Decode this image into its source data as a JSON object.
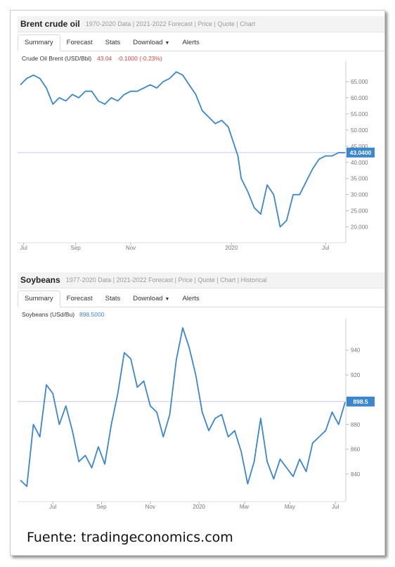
{
  "chart_data": [
    {
      "type": "line",
      "title": "Brent crude oil",
      "nav_links": [
        "1970-2020 Data",
        "2021-2022 Forecast",
        "Price",
        "Quote",
        "Chart"
      ],
      "tabs": [
        "Summary",
        "Forecast",
        "Stats",
        "Download",
        "Alerts"
      ],
      "series_label": "Crude Oil Brent (USD/Bbl)",
      "last_value": "43.04",
      "change": "-0.1000 (-0.23%)",
      "current_marker": "43.0400",
      "current_value": 43.04,
      "ylim": [
        16,
        70
      ],
      "y_ticks": [
        "65.000",
        "60.000",
        "55.000",
        "50.000",
        "45.000",
        "40.000",
        "35.000",
        "30.000",
        "25.000",
        "20.000"
      ],
      "y_tick_values": [
        65,
        60,
        55,
        50,
        45,
        40,
        35,
        30,
        25,
        20
      ],
      "x_ticks": [
        "Jul",
        "Sep",
        "Nov",
        "2020",
        "Jul"
      ],
      "x_tick_positions": [
        0.01,
        0.17,
        0.34,
        0.65,
        0.94
      ],
      "x": [
        0,
        0.02,
        0.04,
        0.06,
        0.08,
        0.1,
        0.12,
        0.14,
        0.16,
        0.18,
        0.2,
        0.22,
        0.24,
        0.26,
        0.28,
        0.3,
        0.32,
        0.34,
        0.36,
        0.38,
        0.4,
        0.42,
        0.44,
        0.46,
        0.48,
        0.5,
        0.52,
        0.54,
        0.56,
        0.58,
        0.6,
        0.62,
        0.64,
        0.66,
        0.67,
        0.68,
        0.7,
        0.72,
        0.74,
        0.76,
        0.78,
        0.8,
        0.82,
        0.84,
        0.86,
        0.88,
        0.9,
        0.92,
        0.94,
        0.96,
        0.98,
        1.0
      ],
      "values": [
        64,
        66,
        67,
        66,
        63,
        58,
        60,
        59,
        61,
        60,
        62,
        62,
        59,
        58,
        60,
        59,
        61,
        62,
        62,
        63,
        64,
        63,
        65,
        66,
        68,
        67,
        64,
        61,
        56,
        54,
        52,
        53,
        51,
        45,
        42,
        35,
        31,
        26,
        24,
        33,
        30,
        20,
        22,
        30,
        30,
        34,
        38,
        41,
        42,
        42,
        43,
        43
      ]
    },
    {
      "type": "line",
      "title": "Soybeans",
      "nav_links": [
        "1977-2020 Data",
        "2021-2022 Forecast",
        "Price",
        "Quote",
        "Chart",
        "Historical"
      ],
      "tabs": [
        "Summary",
        "Forecast",
        "Stats",
        "Download",
        "Alerts"
      ],
      "series_label": "Soybeans (USd/Bu)",
      "last_value": "898.5000",
      "current_marker": "898.5",
      "current_value": 898.5,
      "ylim": [
        820,
        962
      ],
      "y_ticks": [
        "940",
        "920",
        "900",
        "880",
        "860",
        "840"
      ],
      "y_tick_values": [
        940,
        920,
        900,
        880,
        860,
        840
      ],
      "x_ticks": [
        "Jul",
        "Sep",
        "Nov",
        "2020",
        "Mar",
        "May",
        "Jul"
      ],
      "x_tick_positions": [
        0.1,
        0.25,
        0.4,
        0.55,
        0.69,
        0.83,
        0.97
      ],
      "x": [
        0,
        0.02,
        0.04,
        0.06,
        0.08,
        0.1,
        0.12,
        0.14,
        0.16,
        0.18,
        0.2,
        0.22,
        0.24,
        0.26,
        0.28,
        0.3,
        0.32,
        0.34,
        0.36,
        0.38,
        0.4,
        0.42,
        0.44,
        0.46,
        0.48,
        0.5,
        0.52,
        0.54,
        0.56,
        0.58,
        0.6,
        0.62,
        0.64,
        0.66,
        0.68,
        0.7,
        0.72,
        0.74,
        0.76,
        0.78,
        0.8,
        0.82,
        0.84,
        0.86,
        0.88,
        0.9,
        0.92,
        0.94,
        0.96,
        0.98,
        1.0
      ],
      "values": [
        835,
        830,
        880,
        870,
        912,
        905,
        880,
        895,
        875,
        850,
        855,
        845,
        862,
        848,
        880,
        905,
        938,
        933,
        910,
        915,
        895,
        890,
        870,
        888,
        932,
        958,
        942,
        920,
        890,
        875,
        885,
        888,
        870,
        875,
        858,
        832,
        850,
        885,
        850,
        836,
        852,
        845,
        838,
        852,
        842,
        865,
        870,
        875,
        890,
        880,
        898
      ]
    }
  ],
  "caption": "Fuente: tradingeconomics.com",
  "colors": {
    "line": "#3a86cf",
    "marker_bg": "#3a86cf",
    "ref_line": "#c8c8f0",
    "change_red": "#d64545"
  }
}
